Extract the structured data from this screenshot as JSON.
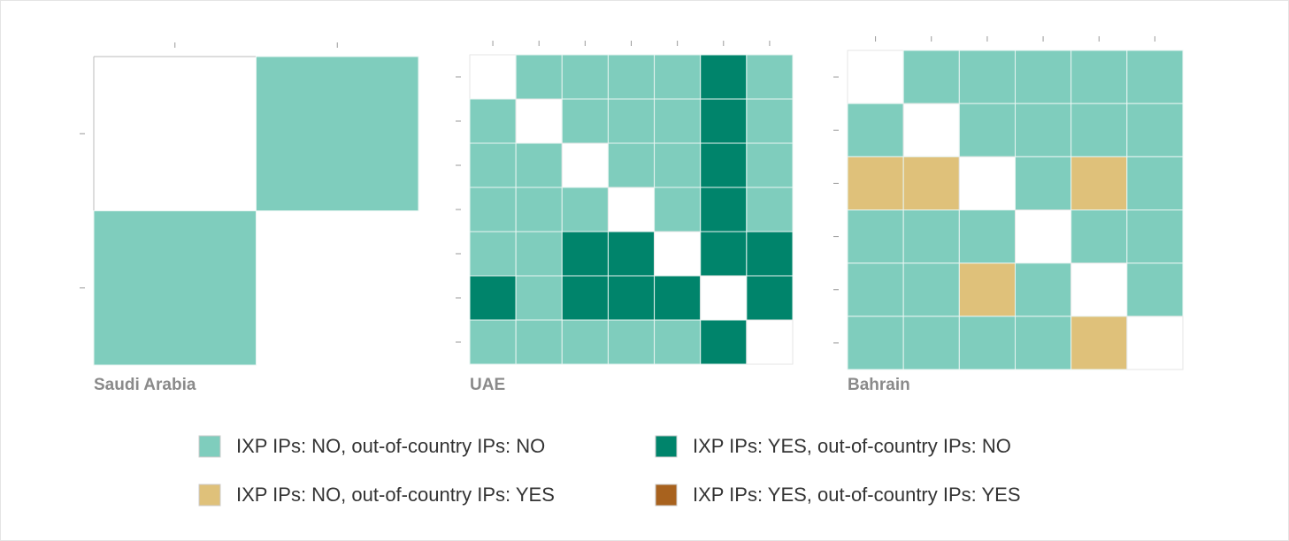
{
  "categories": [
    {
      "label": "IXP IPs: NO, out-of-country IPs: NO",
      "color": "#7fcdbd"
    },
    {
      "label": "IXP IPs: YES, out-of-country IPs: NO",
      "color": "#00846b"
    },
    {
      "label": "IXP IPs: NO, out-of-country IPs: YES",
      "color": "#dfc17a"
    },
    {
      "label": "IXP IPs: YES, out-of-country IPs: YES",
      "color": "#a8621e"
    }
  ],
  "panels": [
    {
      "label": "Saudi Arabia",
      "cells": [
        [
          null,
          0
        ],
        [
          0,
          null
        ]
      ]
    },
    {
      "label": "UAE",
      "cells": [
        [
          null,
          0,
          0,
          0,
          0,
          1,
          0
        ],
        [
          0,
          null,
          0,
          0,
          0,
          1,
          0
        ],
        [
          0,
          0,
          null,
          0,
          0,
          1,
          0
        ],
        [
          0,
          0,
          0,
          null,
          0,
          1,
          0
        ],
        [
          0,
          0,
          1,
          1,
          null,
          1,
          1
        ],
        [
          1,
          0,
          1,
          1,
          1,
          null,
          1
        ],
        [
          0,
          0,
          0,
          0,
          0,
          1,
          null
        ]
      ]
    },
    {
      "label": "Bahrain",
      "cells": [
        [
          null,
          0,
          0,
          0,
          0,
          0
        ],
        [
          0,
          null,
          0,
          0,
          0,
          0
        ],
        [
          2,
          2,
          null,
          0,
          2,
          0
        ],
        [
          0,
          0,
          0,
          null,
          0,
          0
        ],
        [
          0,
          0,
          2,
          0,
          null,
          0
        ],
        [
          0,
          0,
          0,
          0,
          2,
          null
        ]
      ]
    }
  ]
}
